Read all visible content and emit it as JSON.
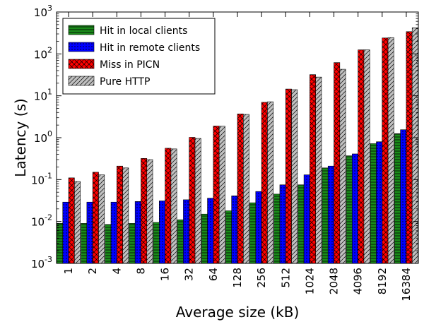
{
  "chart_data": {
    "type": "bar",
    "xlabel": "Average size (kB)",
    "ylabel": "Latency (s)",
    "yscale": "log",
    "ylim": [
      0.001,
      1000
    ],
    "y_tick_labels": [
      {
        "base": "10",
        "exp": "-3"
      },
      {
        "base": "10",
        "exp": "-2"
      },
      {
        "base": "10",
        "exp": "-1"
      },
      {
        "base": "10",
        "exp": "0"
      },
      {
        "base": "10",
        "exp": "1"
      },
      {
        "base": "10",
        "exp": "2"
      },
      {
        "base": "10",
        "exp": "3"
      }
    ],
    "categories": [
      "1",
      "2",
      "4",
      "8",
      "16",
      "32",
      "64",
      "128",
      "256",
      "512",
      "1024",
      "2048",
      "4096",
      "8192",
      "16384"
    ],
    "legend_position": "top-left",
    "series": [
      {
        "name": "Hit in local clients",
        "color": "#1a8c1a",
        "hatch": "horizontal",
        "values": [
          0.009,
          0.009,
          0.0085,
          0.009,
          0.0095,
          0.011,
          0.015,
          0.018,
          0.028,
          0.045,
          0.075,
          0.19,
          0.37,
          0.72,
          1.25
        ]
      },
      {
        "name": "Hit in remote clients",
        "color": "#0000ff",
        "hatch": "dots",
        "values": [
          0.029,
          0.029,
          0.029,
          0.03,
          0.031,
          0.033,
          0.036,
          0.041,
          0.052,
          0.075,
          0.13,
          0.21,
          0.41,
          0.8,
          1.55
        ]
      },
      {
        "name": "Miss in PICN",
        "color": "#ff0000",
        "hatch": "cross",
        "values": [
          0.11,
          0.15,
          0.21,
          0.32,
          0.56,
          1.02,
          1.9,
          3.7,
          7.0,
          14.5,
          32,
          62,
          125,
          240,
          340
        ]
      },
      {
        "name": "Pure HTTP",
        "color": "#c0c0c0",
        "hatch": "diagonal",
        "values": [
          0.09,
          0.13,
          0.19,
          0.3,
          0.54,
          0.96,
          1.88,
          3.6,
          7.2,
          14.0,
          28,
          43,
          125,
          245,
          420
        ]
      }
    ]
  }
}
